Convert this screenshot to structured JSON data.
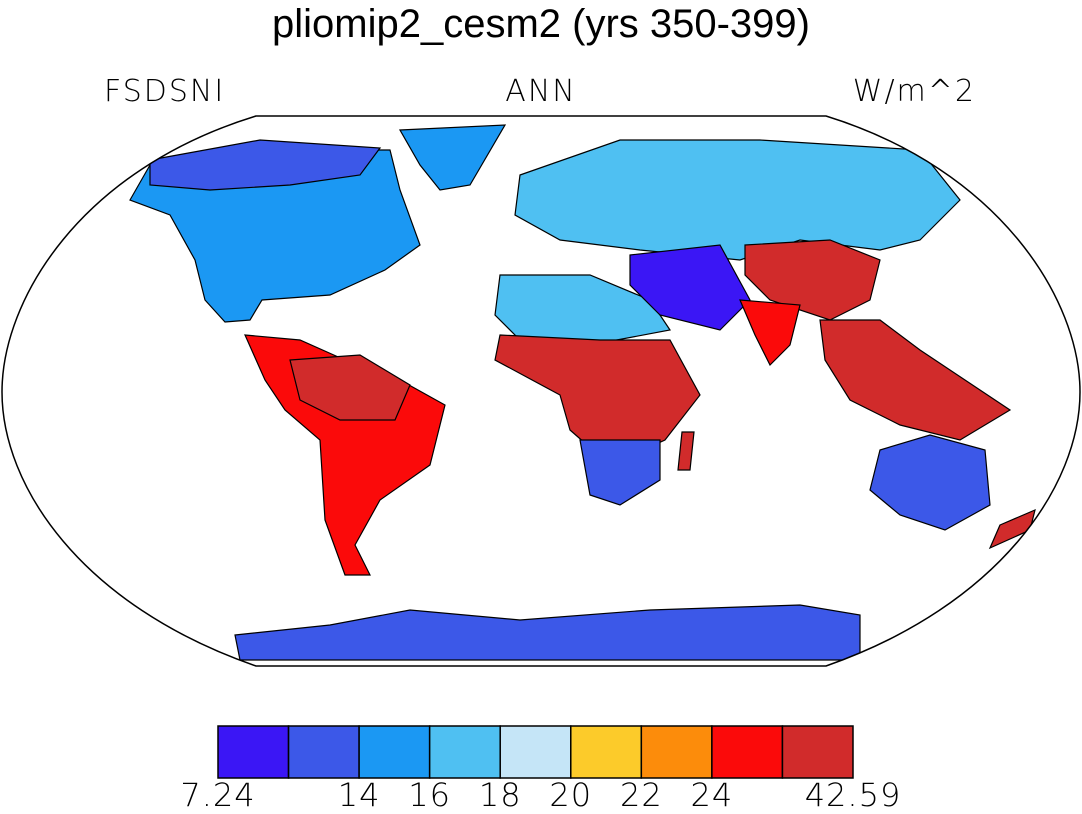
{
  "title": "pliomip2_cesm2 (yrs 350-399)",
  "left_label": "FSDSNI",
  "center_label": "ANN",
  "right_label": "W/m^2",
  "colorbar": {
    "colors": [
      "#3b16f5",
      "#3c58e8",
      "#1b98f3",
      "#4fc0f2",
      "#c5e5f7",
      "#fccb2a",
      "#fc8c0b",
      "#fb0a0a",
      "#d12b2b"
    ],
    "labels": [
      "7.24",
      "",
      "14",
      "16",
      "18",
      "20",
      "22",
      "24",
      "",
      "42.59"
    ]
  },
  "map_regions": [
    {
      "name": "north-america",
      "color": "#1b98f3"
    },
    {
      "name": "canada-arctic",
      "color": "#3c58e8"
    },
    {
      "name": "greenland-coast",
      "color": "#1b98f3"
    },
    {
      "name": "south-america",
      "color": "#fb0a0a"
    },
    {
      "name": "amazon-core",
      "color": "#d12b2b"
    },
    {
      "name": "africa-north",
      "color": "#4fc0f2"
    },
    {
      "name": "africa-central",
      "color": "#d12b2b"
    },
    {
      "name": "africa-south",
      "color": "#3c58e8"
    },
    {
      "name": "eurasia",
      "color": "#4fc0f2"
    },
    {
      "name": "middle-east",
      "color": "#3b16f5"
    },
    {
      "name": "china",
      "color": "#d12b2b"
    },
    {
      "name": "south-asia",
      "color": "#fb0a0a"
    },
    {
      "name": "southeast-asia",
      "color": "#d12b2b"
    },
    {
      "name": "australia",
      "color": "#3c58e8"
    },
    {
      "name": "antarctica",
      "color": "#3c58e8"
    },
    {
      "name": "madagascar",
      "color": "#d12b2b"
    },
    {
      "name": "new-zealand",
      "color": "#d12b2b"
    }
  ]
}
